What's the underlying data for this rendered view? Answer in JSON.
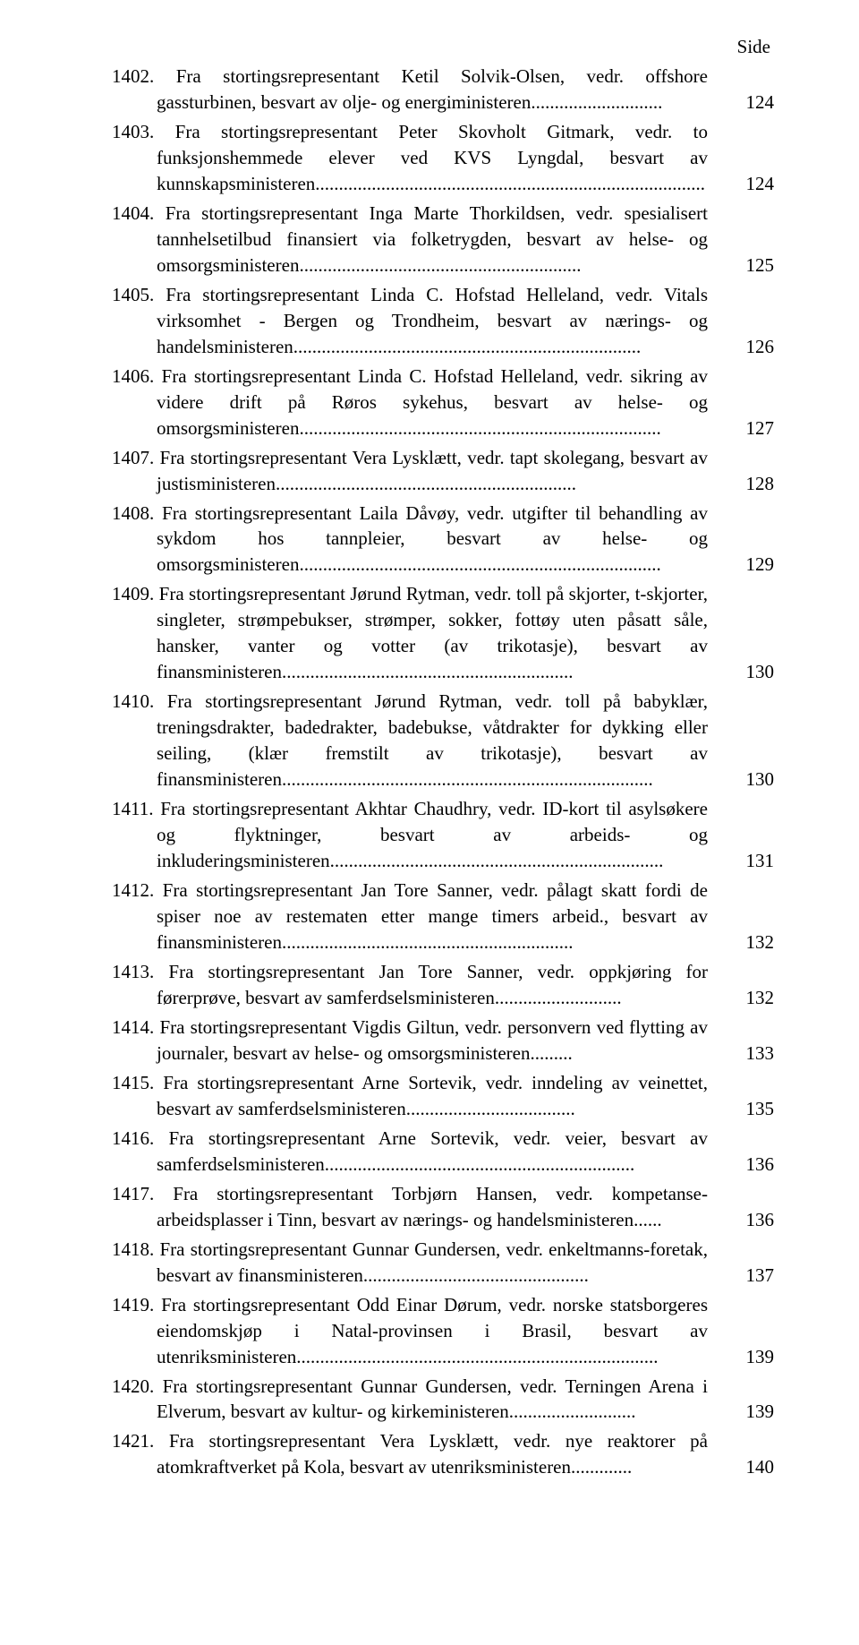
{
  "header": {
    "side_label": "Side"
  },
  "entries": [
    {
      "num": "1402.",
      "text": "Fra stortingsrepresentant Ketil Solvik-Olsen, vedr. offshore gassturbinen, besvart av olje- og energiministeren............................",
      "page": "124"
    },
    {
      "num": "1403.",
      "text": "Fra stortingsrepresentant Peter Skovholt Gitmark, vedr. to funksjonshemmede elever ved KVS Lyngdal, besvart av kunnskapsministeren...................................................................................",
      "page": "124"
    },
    {
      "num": "1404.",
      "text": "Fra stortingsrepresentant Inga Marte Thorkildsen, vedr. spesialisert tannhelsetilbud finansiert via folketrygden, besvart av helse- og omsorgsministeren............................................................",
      "page": "125"
    },
    {
      "num": "1405.",
      "text": "Fra stortingsrepresentant Linda C. Hofstad Helleland, vedr. Vitals virksomhet - Bergen og Trondheim, besvart av nærings- og handelsministeren..........................................................................",
      "page": "126"
    },
    {
      "num": "1406.",
      "text": "Fra stortingsrepresentant Linda C. Hofstad Helleland, vedr. sikring av videre drift på Røros sykehus, besvart av helse- og omsorgsministeren.............................................................................",
      "page": "127"
    },
    {
      "num": "1407.",
      "text": "Fra stortingsrepresentant Vera Lysklætt, vedr. tapt skolegang, besvart av justisministeren................................................................",
      "page": "128"
    },
    {
      "num": "1408.",
      "text": "Fra stortingsrepresentant Laila Dåvøy, vedr. utgifter til behandling av sykdom hos tannpleier, besvart av helse- og omsorgsministeren.............................................................................",
      "page": "129"
    },
    {
      "num": "1409.",
      "text": "Fra stortingsrepresentant Jørund Rytman, vedr. toll på skjorter, t-skjorter, singleter, strømpebukser, strømper, sokker, fottøy uten påsatt såle, hansker, vanter og votter (av trikotasje), besvart av finansministeren..............................................................",
      "page": "130"
    },
    {
      "num": "1410.",
      "text": "Fra stortingsrepresentant Jørund Rytman, vedr. toll på babyklær, treningsdrakter, badedrakter, badebukse, våtdrakter for dykking eller seiling, (klær fremstilt av trikotasje), besvart av finansministeren...............................................................................",
      "page": "130"
    },
    {
      "num": "1411.",
      "text": "Fra stortingsrepresentant Akhtar Chaudhry, vedr. ID-kort til asylsøkere og flyktninger, besvart av arbeids- og inkluderingsministeren.......................................................................",
      "page": "131"
    },
    {
      "num": "1412.",
      "text": "Fra stortingsrepresentant Jan Tore Sanner, vedr. pålagt skatt fordi de spiser noe av restematen etter mange timers arbeid., besvart av finansministeren..............................................................",
      "page": "132"
    },
    {
      "num": "1413.",
      "text": "Fra stortingsrepresentant Jan Tore Sanner, vedr. oppkjøring for førerprøve, besvart av samferdselsministeren...........................",
      "page": "132"
    },
    {
      "num": "1414.",
      "text": "Fra stortingsrepresentant Vigdis Giltun, vedr. personvern ved flytting av journaler, besvart av helse- og omsorgsministeren.........",
      "page": "133"
    },
    {
      "num": "1415.",
      "text": "Fra stortingsrepresentant Arne Sortevik, vedr. inndeling av veinettet, besvart av samferdselsministeren....................................",
      "page": "135"
    },
    {
      "num": "1416.",
      "text": "Fra stortingsrepresentant Arne Sortevik, vedr. veier, besvart av samferdselsministeren..................................................................",
      "page": "136"
    },
    {
      "num": "1417.",
      "text": "Fra stortingsrepresentant Torbjørn Hansen, vedr. kompetanse-arbeidsplasser i Tinn, besvart av nærings- og handelsministeren......",
      "page": "136"
    },
    {
      "num": "1418.",
      "text": "Fra stortingsrepresentant Gunnar Gundersen, vedr. enkeltmanns-foretak, besvart av finansministeren................................................",
      "page": "137"
    },
    {
      "num": "1419.",
      "text": "Fra stortingsrepresentant Odd Einar Dørum, vedr. norske statsborgeres eiendomskjøp i Natal-provinsen i Brasil, besvart av utenriksministeren.............................................................................",
      "page": "139"
    },
    {
      "num": "1420.",
      "text": "Fra stortingsrepresentant Gunnar Gundersen, vedr. Terningen Arena i Elverum, besvart av kultur- og kirkeministeren...........................",
      "page": "139"
    },
    {
      "num": "1421.",
      "text": "Fra stortingsrepresentant Vera Lysklætt, vedr. nye reaktorer på atomkraftverket på Kola, besvart av utenriksministeren.............",
      "page": "140"
    }
  ]
}
